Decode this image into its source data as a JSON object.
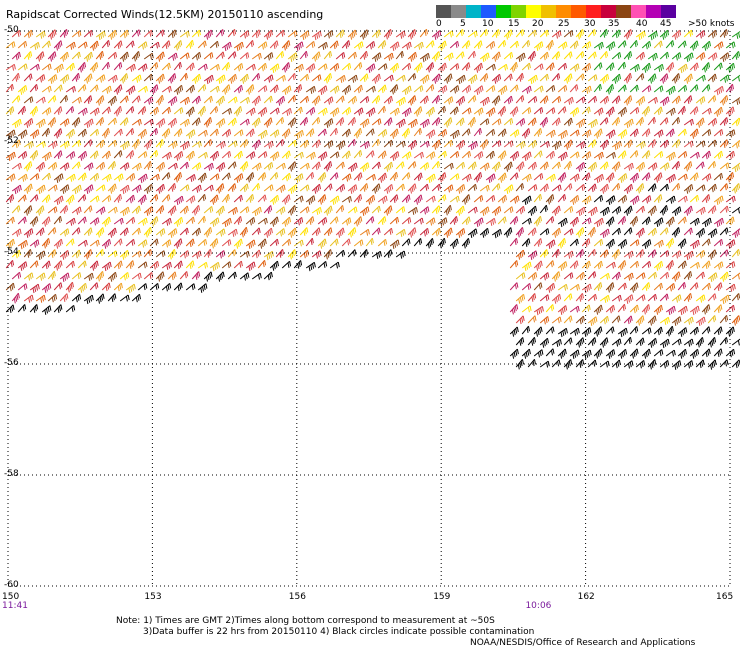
{
  "title": "Rapidscat Corrected Winds(12.5KM) 20150110 ascending",
  "legend": {
    "colors": [
      "#555555",
      "#8a8a8a",
      "#00b4c8",
      "#1e5aff",
      "#00c800",
      "#7fd400",
      "#ffff00",
      "#f0c000",
      "#ff8c00",
      "#ff5a00",
      "#ff1e1e",
      "#c8003c",
      "#8b4513",
      "#ff50b4",
      "#b400b4",
      "#5a00a0"
    ],
    "labels": [
      "0",
      "5",
      "10",
      "15",
      "20",
      "25",
      "30",
      "35",
      "40",
      "45",
      ">50 knots"
    ]
  },
  "map": {
    "lon_range": [
      150,
      165
    ],
    "lat_range": [
      -60,
      -50
    ],
    "lon_ticks": [
      "150",
      "153",
      "156",
      "159",
      "162",
      "165"
    ],
    "lat_ticks": [
      "-50",
      "-52",
      "-54",
      "-56",
      "-58",
      "-60"
    ],
    "time_labels": [
      {
        "text": "11:41",
        "lon": 150
      },
      {
        "text": "10:06",
        "lon": 161
      }
    ]
  },
  "notes": {
    "line1": "Note: 1) Times are GMT 2)Times along bottom correspond to measurement at ~50S",
    "line2": "3)Data buffer is 22 hrs from 20150110 4) Black circles indicate possible contamination",
    "credit": "NOAA/NESDIS/Office of Research and Applications"
  }
}
